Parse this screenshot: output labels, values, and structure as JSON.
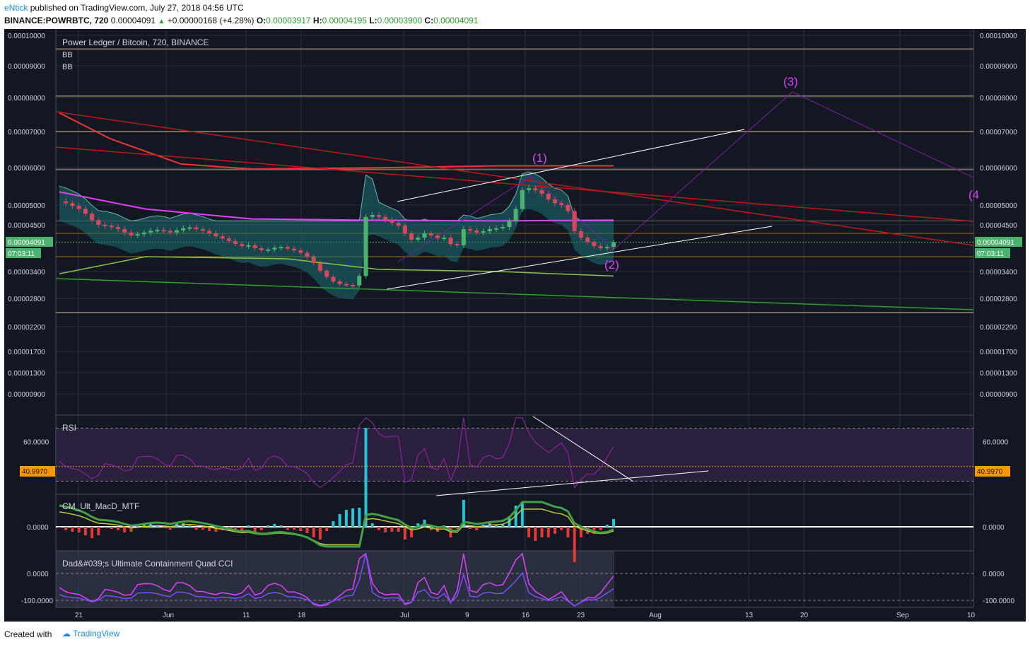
{
  "header": {
    "author": "eNtick",
    "published_text": "published on TradingView.com, July 27, 2018 04:56 UTC",
    "symbol": "BINANCE:POWRBTC, 720",
    "last": "0.00004091",
    "change": "+0.00000168 (+4.28%)",
    "o_label": "O:",
    "o_value": "0.00003917",
    "h_label": "H:",
    "h_value": "0.00004195",
    "l_label": "L:",
    "l_value": "0.00003900",
    "c_label": "C:",
    "c_value": "0.00004091"
  },
  "footer": {
    "created_with": "Created with",
    "brand": "TradingView"
  },
  "colors": {
    "background": "#131722",
    "grid": "#2a2e39",
    "up": "#4bb36d",
    "down": "#d9475d",
    "bb_fill": "#1e6d72",
    "price_line": "#4caf50",
    "rsi_line": "#9c27b0",
    "rsi_band": "#2a1f3d",
    "label_orange": "#ff9800",
    "wave_magenta": "#e040fb"
  },
  "price_pane": {
    "title": "Power Ledger / Bitcoin, 720, BINANCE",
    "indicators": [
      "BB",
      "BB"
    ],
    "current_price_label": "0.00004091",
    "countdown": "07:03:11",
    "wave_labels": [
      "(1)",
      "(2)",
      "(3)",
      "(4"
    ]
  },
  "rsi_pane": {
    "title": "RSI",
    "value_label": "40.9970"
  },
  "macd_pane": {
    "title": "CM_Ult_MacD_MTF"
  },
  "cci_pane": {
    "title": "Dad&#039;s Ultimate Containment Quad CCI"
  },
  "chart_data": {
    "type": "line",
    "title": "Power Ledger / Bitcoin, 720, BINANCE",
    "y_axis_ticks": [
      "0.00010000",
      "0.00009000",
      "0.00008000",
      "0.00007000",
      "0.00006000",
      "0.00005000",
      "0.00004500",
      "0.00003400",
      "0.00002800",
      "0.00002200",
      "0.00001700",
      "0.00001300",
      "0.00000900"
    ],
    "y_axis_values": [
      0.0001,
      9e-05,
      8e-05,
      7e-05,
      6e-05,
      5e-05,
      4.5e-05,
      3.4e-05,
      2.8e-05,
      2.2e-05,
      1.7e-05,
      1.3e-05,
      9e-06
    ],
    "x_axis_ticks": [
      "21",
      "Jun",
      "11",
      "18",
      "Jul",
      "9",
      "16",
      "23",
      "Aug",
      "13",
      "20",
      "Sep",
      "10"
    ],
    "ylim": [
      9e-06,
      0.0001
    ],
    "horizontal_levels": [
      9.55e-05,
      8.05e-05,
      7e-05,
      5.95e-05,
      4.6e-05,
      4.3e-05,
      3.75e-05,
      2.5e-05
    ],
    "series": [
      {
        "name": "POWRBTC",
        "values": [
          5.1e-05,
          5.05e-05,
          4.98e-05,
          4.9e-05,
          4.78e-05,
          4.62e-05,
          4.5e-05,
          4.48e-05,
          4.45e-05,
          4.4e-05,
          4.32e-05,
          4.25e-05,
          4.28e-05,
          4.32e-05,
          4.36e-05,
          4.38e-05,
          4.36e-05,
          4.32e-05,
          4.37e-05,
          4.42e-05,
          4.44e-05,
          4.4e-05,
          4.36e-05,
          4.3e-05,
          4.23e-05,
          4.18e-05,
          4.12e-05,
          4.05e-05,
          4e-05,
          4.02e-05,
          3.95e-05,
          3.9e-05,
          3.92e-05,
          3.96e-05,
          3.98e-05,
          3.94e-05,
          3.9e-05,
          3.84e-05,
          3.75e-05,
          3.6e-05,
          3.42e-05,
          3.28e-05,
          3.18e-05,
          3.12e-05,
          3.1e-05,
          3.09e-05,
          3.3e-05,
          4.7e-05,
          4.75e-05,
          4.7e-05,
          4.62e-05,
          4.55e-05,
          4.48e-05,
          4.3e-05,
          4.15e-05,
          4.2e-05,
          4.3e-05,
          4.25e-05,
          4.18e-05,
          4.2e-05,
          4.05e-05,
          4.02e-05,
          4.4e-05,
          4.37e-05,
          4.32e-05,
          4.35e-05,
          4.4e-05,
          4.42e-05,
          4.45e-05,
          4.6e-05,
          4.9e-05,
          5.4e-05,
          5.45e-05,
          5.4e-05,
          5.3e-05,
          5.15e-05,
          5.05e-05,
          5e-05,
          4.85e-05,
          4.35e-05,
          4.2e-05,
          4.1e-05,
          4e-05,
          3.95e-05,
          3.98e-05,
          4.09e-05
        ]
      }
    ],
    "rsi": {
      "ylim": [
        20,
        80
      ],
      "ticks": [
        "60.0000"
      ],
      "tick_values": [
        60
      ],
      "current": 40.997,
      "bands": [
        70,
        30
      ]
    },
    "macd": {
      "ticks": [
        "0.0000"
      ],
      "tick_values": [
        0
      ]
    },
    "cci": {
      "ticks": [
        "0.0000",
        "-100.0000"
      ],
      "tick_values": [
        0,
        -100
      ]
    }
  }
}
